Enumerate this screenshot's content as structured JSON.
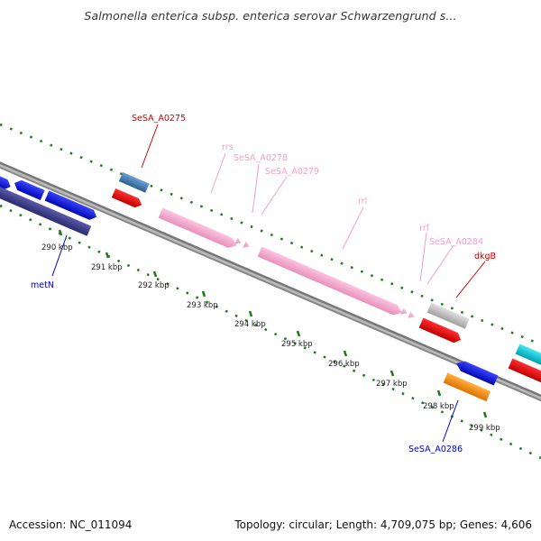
{
  "title": "Salmonella enterica subsp. enterica serovar Schwarzengrund s...",
  "footer": {
    "accession": "Accession: NC_011094",
    "topology": "Topology: circular; Length: 4,709,075 bp; Genes: 4,606"
  },
  "ticks": [
    {
      "label": "290 kbp"
    },
    {
      "label": "291 kbp"
    },
    {
      "label": "292 kbp"
    },
    {
      "label": "293 kbp"
    },
    {
      "label": "294 kbp"
    },
    {
      "label": "295 kbp"
    },
    {
      "label": "296 kbp"
    },
    {
      "label": "297 kbp"
    },
    {
      "label": "298 kbp"
    },
    {
      "label": "299 kbp"
    }
  ],
  "gene_labels": [
    {
      "text": "SeSA_A0275",
      "color": "#cc0000"
    },
    {
      "text": "rrs",
      "color": "#f0a0c8"
    },
    {
      "text": "SeSA_A0278",
      "color": "#f0a0c8"
    },
    {
      "text": "SeSA_A0279",
      "color": "#f0a0c8"
    },
    {
      "text": "rrl",
      "color": "#f0a0c8"
    },
    {
      "text": "rrf",
      "color": "#f0a0c8"
    },
    {
      "text": "SeSA_A0284",
      "color": "#f0a0c8"
    },
    {
      "text": "dkgB",
      "color": "#cc0000"
    },
    {
      "text": "metN",
      "color": "#0000cc"
    },
    {
      "text": "SeSA_A0286",
      "color": "#0000cc"
    }
  ],
  "colors": {
    "backbone": "#888888",
    "dots": "#1a7a1a",
    "blue": "#0a14e0",
    "navy": "#3c3c8c",
    "steel": "#4682b4",
    "red": "#ee0000",
    "pink": "#f4a8cc",
    "gray": "#c0c0c0",
    "orange": "#ff8c00",
    "cyan": "#00c8d0"
  }
}
